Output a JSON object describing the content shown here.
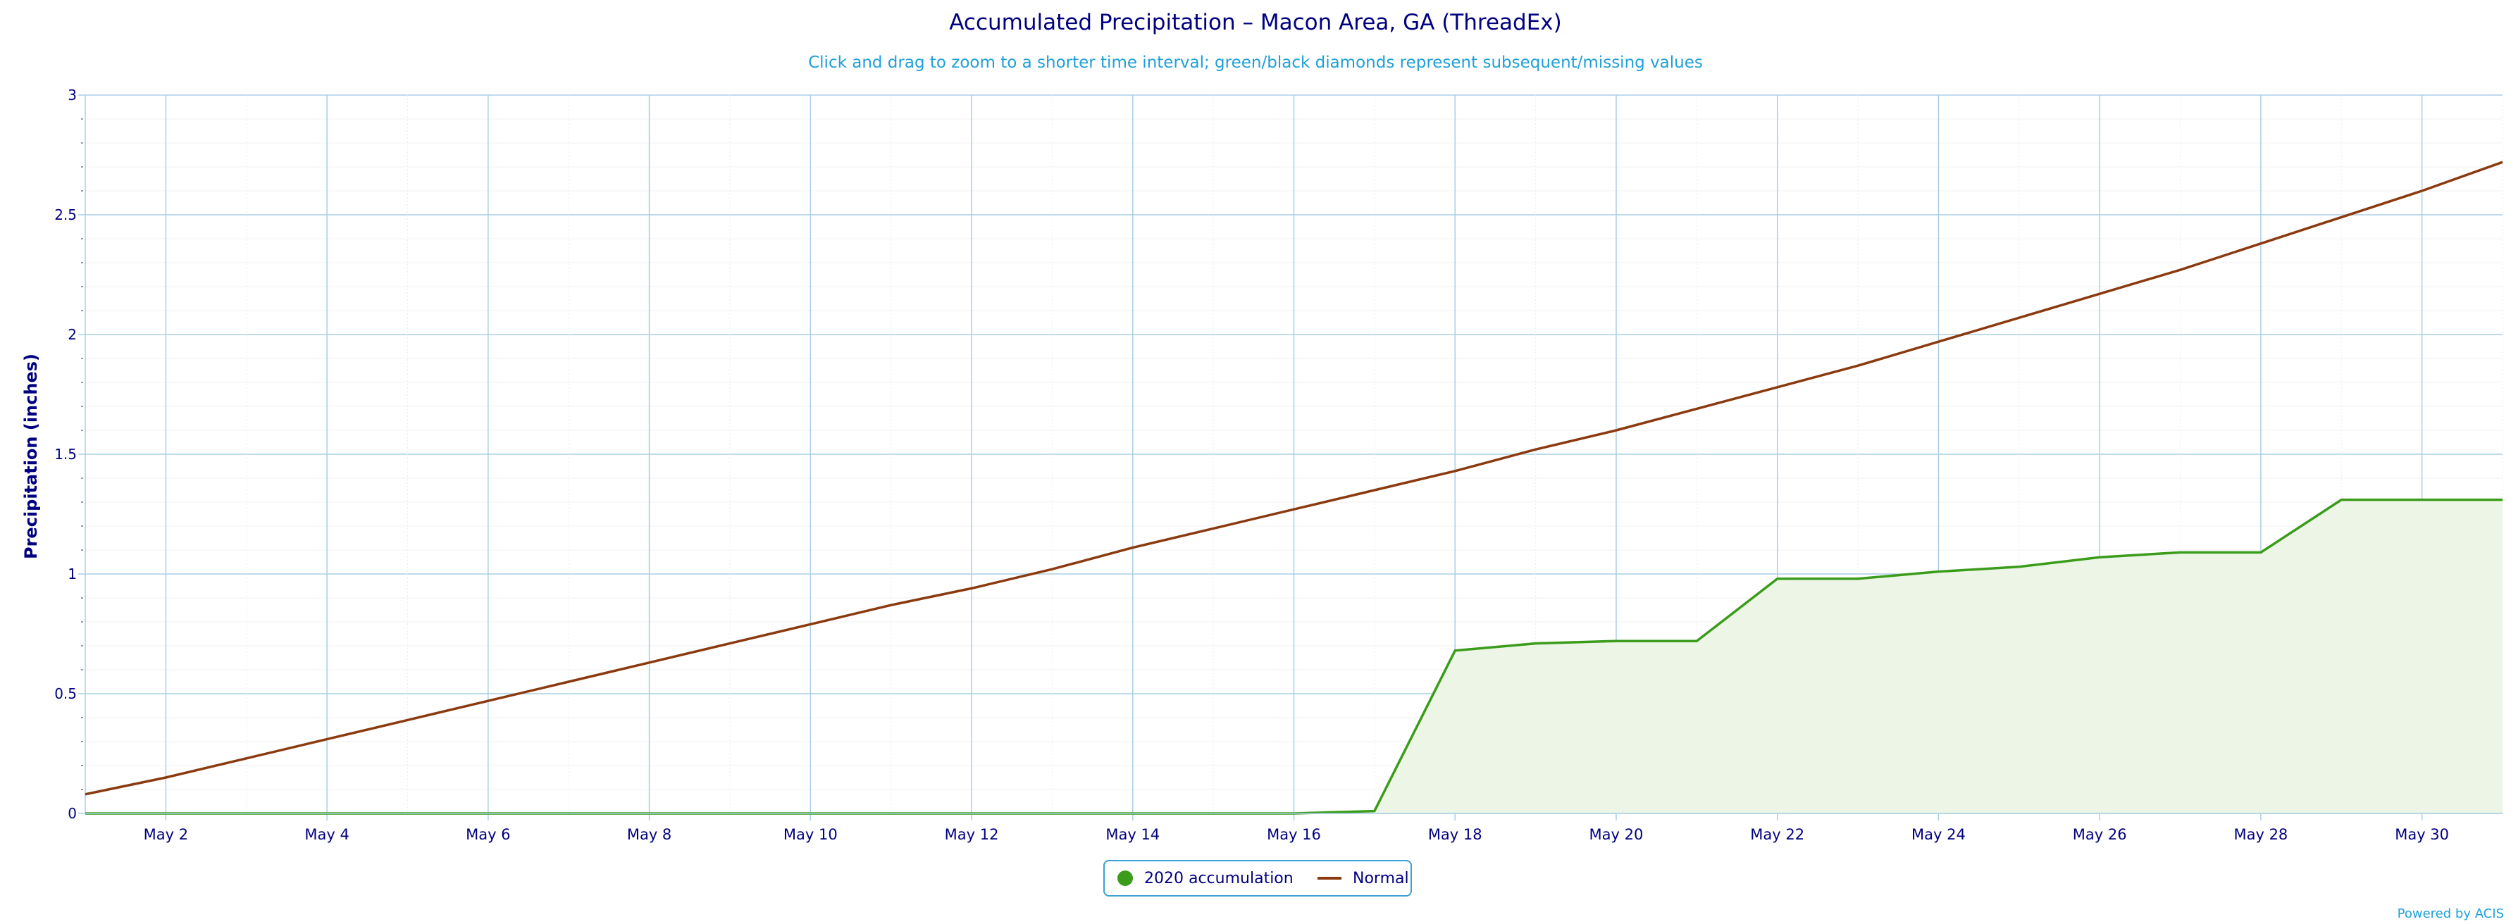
{
  "chart_data": {
    "type": "area",
    "title": "Accumulated Precipitation – Macon Area, GA (ThreadEx)",
    "subtitle": "Click and drag to zoom to a shorter time interval; green/black diamonds represent subsequent/missing values",
    "ylabel": "Precipitation (inches)",
    "xlabel": "",
    "ylim": [
      0,
      3
    ],
    "xlim": [
      "2020-05-01",
      "2020-05-31"
    ],
    "y_ticks": [
      "0",
      "0.5",
      "1",
      "1.5",
      "2",
      "2.5",
      "3"
    ],
    "x_ticks": [
      "May 2",
      "May 4",
      "May 6",
      "May 8",
      "May 10",
      "May 12",
      "May 14",
      "May 16",
      "May 18",
      "May 20",
      "May 22",
      "May 24",
      "May 26",
      "May 28",
      "May 30"
    ],
    "grid": true,
    "legend_position": "bottom-center",
    "dates": [
      "2020-05-01",
      "2020-05-02",
      "2020-05-03",
      "2020-05-04",
      "2020-05-05",
      "2020-05-06",
      "2020-05-07",
      "2020-05-08",
      "2020-05-09",
      "2020-05-10",
      "2020-05-11",
      "2020-05-12",
      "2020-05-13",
      "2020-05-14",
      "2020-05-15",
      "2020-05-16",
      "2020-05-17",
      "2020-05-18",
      "2020-05-19",
      "2020-05-20",
      "2020-05-21",
      "2020-05-22",
      "2020-05-23",
      "2020-05-24",
      "2020-05-25",
      "2020-05-26",
      "2020-05-27",
      "2020-05-28",
      "2020-05-29",
      "2020-05-30",
      "2020-05-31"
    ],
    "series": [
      {
        "name": "2020 accumulation",
        "type": "area",
        "color": "#3a9c1a",
        "fill": "#ecf5e6",
        "values": [
          0,
          0,
          0,
          0,
          0,
          0,
          0,
          0,
          0,
          0,
          0,
          0,
          0,
          0,
          0,
          0,
          0.01,
          0.68,
          0.71,
          0.72,
          0.72,
          0.98,
          0.98,
          1.01,
          1.03,
          1.07,
          1.09,
          1.09,
          1.31,
          1.31,
          1.31
        ]
      },
      {
        "name": "Normal",
        "type": "line",
        "color": "#8b3a0f",
        "values": [
          0.08,
          0.15,
          0.23,
          0.31,
          0.39,
          0.47,
          0.55,
          0.63,
          0.71,
          0.79,
          0.87,
          0.94,
          1.02,
          1.11,
          1.19,
          1.27,
          1.35,
          1.43,
          1.52,
          1.6,
          1.69,
          1.78,
          1.87,
          1.97,
          2.07,
          2.17,
          2.27,
          2.38,
          2.49,
          2.6,
          2.72
        ]
      }
    ]
  },
  "credit": "Powered by ACIS"
}
